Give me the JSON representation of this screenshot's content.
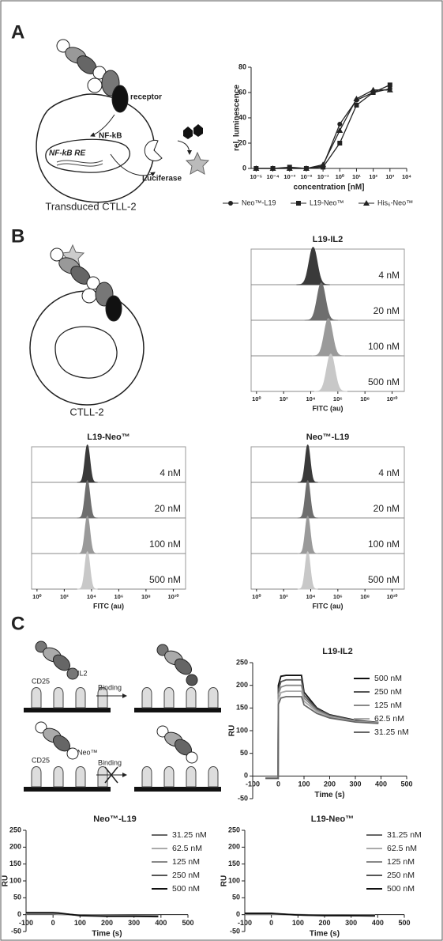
{
  "panel_labels": [
    "A",
    "B",
    "C"
  ],
  "diagram_texts": {
    "receptor": "receptor",
    "nfkb": "NF-kB",
    "nfkb_re": "NF-kB RE",
    "luciferase": "Luciferase",
    "transduced": "Transduced CTLL-2",
    "ctll2": "CTLL-2",
    "il2": "IL2",
    "cd25_top": "CD25",
    "binding_top": "Binding",
    "neo": "Neo™",
    "cd25_bottom": "CD25",
    "binding_bottom": "Binding"
  },
  "chart_data": [
    {
      "type": "line",
      "log_x": true,
      "xlabel": "concentration [nM]",
      "ylabel": "rel. luminescence",
      "legend": "bottom",
      "xlim": [
        5e-06,
        10000
      ],
      "ylim": [
        0,
        80
      ],
      "xticks": [
        {
          "value": 1e-05,
          "label": "10⁻⁵"
        },
        {
          "value": 0.0001,
          "label": "10⁻⁴"
        },
        {
          "value": 0.001,
          "label": "10⁻³"
        },
        {
          "value": 0.01,
          "label": "10⁻²"
        },
        {
          "value": 0.1,
          "label": "10⁻¹"
        },
        {
          "value": 1,
          "label": "10⁰"
        },
        {
          "value": 10,
          "label": "10¹"
        },
        {
          "value": 100,
          "label": "10²"
        },
        {
          "value": 1000,
          "label": "10³"
        },
        {
          "value": 10000,
          "label": "10⁴"
        }
      ],
      "yticks": [
        0,
        20,
        40,
        60,
        80
      ],
      "x": [
        1e-05,
        0.0001,
        0.001,
        0.01,
        0.1,
        1,
        10,
        100,
        1000
      ],
      "series": [
        {
          "name": "Neo™-L19",
          "color": "#222222",
          "marker": "circle",
          "values": [
            0,
            0,
            0,
            0,
            2,
            35,
            54,
            60,
            63
          ]
        },
        {
          "name": "L19-Neo™",
          "color": "#222222",
          "marker": "square",
          "values": [
            0,
            0,
            1,
            0,
            1,
            20,
            50,
            60,
            66
          ]
        },
        {
          "name": "His₆-Neo™",
          "color": "#222222",
          "marker": "triangle",
          "values": [
            0,
            0,
            0,
            0,
            3,
            30,
            55,
            62,
            62
          ]
        }
      ]
    },
    {
      "type": "ridgeline",
      "title": "L19-IL2",
      "xlabel": "FITC (au)",
      "log_x": true,
      "xlim": [
        0.4,
        80000000000
      ],
      "xticks": [
        {
          "value": 1,
          "label": "10⁰"
        },
        {
          "value": 100,
          "label": "10²"
        },
        {
          "value": 10000,
          "label": "10⁴"
        },
        {
          "value": 1000000,
          "label": "10⁶"
        },
        {
          "value": 100000000,
          "label": "10⁸"
        },
        {
          "value": 10000000000,
          "label": "10¹⁰"
        }
      ],
      "series": [
        {
          "name": "4 nM",
          "color": "#3a3a3a",
          "peak": 15000
        },
        {
          "name": "20 nM",
          "color": "#6e6e6e",
          "peak": 60000
        },
        {
          "name": "100 nM",
          "color": "#9a9a9a",
          "peak": 200000
        },
        {
          "name": "500 nM",
          "color": "#c8c8c8",
          "peak": 300000
        }
      ]
    },
    {
      "type": "ridgeline",
      "title": "L19-Neo™",
      "xlabel": "FITC (au)",
      "log_x": true,
      "xlim": [
        0.4,
        80000000000
      ],
      "xticks": [
        {
          "value": 1,
          "label": "10⁰"
        },
        {
          "value": 100,
          "label": "10²"
        },
        {
          "value": 10000,
          "label": "10⁴"
        },
        {
          "value": 1000000,
          "label": "10⁶"
        },
        {
          "value": 100000000,
          "label": "10⁸"
        },
        {
          "value": 10000000000,
          "label": "10¹⁰"
        }
      ],
      "series": [
        {
          "name": "4 nM",
          "color": "#3a3a3a",
          "peak": 5000
        },
        {
          "name": "20 nM",
          "color": "#6e6e6e",
          "peak": 5000
        },
        {
          "name": "100 nM",
          "color": "#9a9a9a",
          "peak": 5000
        },
        {
          "name": "500 nM",
          "color": "#c8c8c8",
          "peak": 5000
        }
      ]
    },
    {
      "type": "ridgeline",
      "title": "Neo™-L19",
      "xlabel": "FITC (au)",
      "log_x": true,
      "xlim": [
        0.4,
        80000000000
      ],
      "xticks": [
        {
          "value": 1,
          "label": "10⁰"
        },
        {
          "value": 100,
          "label": "10²"
        },
        {
          "value": 10000,
          "label": "10⁴"
        },
        {
          "value": 1000000,
          "label": "10⁶"
        },
        {
          "value": 100000000,
          "label": "10⁸"
        },
        {
          "value": 10000000000,
          "label": "10¹⁰"
        }
      ],
      "series": [
        {
          "name": "4 nM",
          "color": "#3a3a3a",
          "peak": 6000
        },
        {
          "name": "20 nM",
          "color": "#6e6e6e",
          "peak": 6000
        },
        {
          "name": "100 nM",
          "color": "#9a9a9a",
          "peak": 6000
        },
        {
          "name": "500 nM",
          "color": "#c8c8c8",
          "peak": 6000
        }
      ]
    },
    {
      "type": "line",
      "title": "L19-IL2",
      "xlabel": "Time (s)",
      "ylabel": "RU",
      "legend": "right",
      "xlim": [
        -100,
        500
      ],
      "ylim": [
        -50,
        250
      ],
      "xticks": [
        -100,
        0,
        100,
        200,
        300,
        400,
        500
      ],
      "yticks": [
        -50,
        0,
        50,
        100,
        150,
        200,
        250
      ],
      "x": [
        -50,
        -1,
        0,
        10,
        30,
        90,
        95,
        100,
        150,
        200,
        300,
        390
      ],
      "series": [
        {
          "name": "500 nM",
          "color": "#111111",
          "values": [
            -5,
            -5,
            200,
            220,
            222,
            222,
            205,
            185,
            150,
            135,
            123,
            118
          ]
        },
        {
          "name": "250 nM",
          "color": "#555555",
          "values": [
            -5,
            -5,
            190,
            208,
            212,
            212,
            197,
            178,
            148,
            134,
            122,
            118
          ]
        },
        {
          "name": "125 nM",
          "color": "#888888",
          "values": [
            -5,
            -5,
            180,
            196,
            200,
            200,
            187,
            172,
            145,
            132,
            121,
            117
          ]
        },
        {
          "name": "62.5 nM",
          "color": "#aaaaaa",
          "values": [
            -5,
            -5,
            168,
            184,
            187,
            187,
            177,
            165,
            142,
            130,
            120,
            117
          ]
        },
        {
          "name": "31.25 nM",
          "color": "#666666",
          "values": [
            -5,
            -5,
            158,
            172,
            175,
            175,
            167,
            157,
            138,
            128,
            119,
            116
          ]
        }
      ]
    },
    {
      "type": "line",
      "title": "Neo™-L19",
      "xlabel": "Time (s)",
      "ylabel": "RU",
      "legend": "right",
      "xlim": [
        -100,
        500
      ],
      "ylim": [
        -50,
        250
      ],
      "xticks": [
        -100,
        0,
        100,
        200,
        300,
        400,
        500
      ],
      "yticks": [
        -50,
        0,
        50,
        100,
        150,
        200,
        250
      ],
      "x": [
        -100,
        0,
        20,
        100,
        200,
        300,
        390
      ],
      "series": [
        {
          "name": "31.25 nM",
          "color": "#666666",
          "values": [
            2,
            2,
            1,
            -1,
            -2,
            -2,
            -2
          ]
        },
        {
          "name": "62.5 nM",
          "color": "#aaaaaa",
          "values": [
            3,
            3,
            2,
            -1,
            -2,
            -3,
            -3
          ]
        },
        {
          "name": "125 nM",
          "color": "#888888",
          "values": [
            4,
            4,
            3,
            -2,
            -3,
            -3,
            -4
          ]
        },
        {
          "name": "250 nM",
          "color": "#555555",
          "values": [
            5,
            5,
            4,
            -2,
            -4,
            -4,
            -5
          ]
        },
        {
          "name": "500 nM",
          "color": "#111111",
          "values": [
            6,
            6,
            5,
            -3,
            -5,
            -5,
            -6
          ]
        }
      ]
    },
    {
      "type": "line",
      "title": "L19-Neo™",
      "xlabel": "Time (s)",
      "ylabel": "RU",
      "legend": "right",
      "xlim": [
        -100,
        500
      ],
      "ylim": [
        -50,
        250
      ],
      "xticks": [
        -100,
        0,
        100,
        200,
        300,
        400,
        500
      ],
      "yticks": [
        -50,
        0,
        50,
        100,
        150,
        200,
        250
      ],
      "x": [
        -100,
        0,
        20,
        100,
        200,
        300,
        390
      ],
      "series": [
        {
          "name": "31.25 nM",
          "color": "#666666",
          "values": [
            1,
            1,
            1,
            0,
            -1,
            -1,
            -1
          ]
        },
        {
          "name": "62.5 nM",
          "color": "#aaaaaa",
          "values": [
            2,
            2,
            1,
            0,
            -1,
            -2,
            -2
          ]
        },
        {
          "name": "125 nM",
          "color": "#888888",
          "values": [
            2,
            2,
            2,
            -1,
            -2,
            -2,
            -2
          ]
        },
        {
          "name": "250 nM",
          "color": "#555555",
          "values": [
            3,
            3,
            2,
            -1,
            -2,
            -3,
            -3
          ]
        },
        {
          "name": "500 nM",
          "color": "#111111",
          "values": [
            4,
            4,
            3,
            -1,
            -3,
            -3,
            -4
          ]
        }
      ]
    }
  ]
}
